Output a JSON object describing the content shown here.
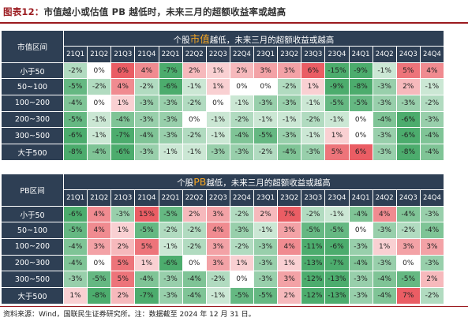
{
  "figure": {
    "number": "图表12：",
    "title": "市值越小或估值 PB 越低时，未来三月的超额收益率或越高"
  },
  "quarters": [
    "21Q1",
    "21Q2",
    "21Q3",
    "21Q4",
    "22Q1",
    "22Q2",
    "22Q3",
    "22Q4",
    "23Q1",
    "23Q2",
    "23Q3",
    "23Q4",
    "24Q1",
    "24Q2",
    "24Q3",
    "24Q4"
  ],
  "tables": [
    {
      "corner_label": "市值区间",
      "title_prefix": "个股",
      "title_highlight": "市值",
      "title_suffix": "越低，未来三月的超额收益或越高",
      "rows": [
        {
          "label": "小于50",
          "values": [
            "-2%",
            "0%",
            "6%",
            "4%",
            "-7%",
            "2%",
            "1%",
            "2%",
            "3%",
            "3%",
            "6%",
            "-15%",
            "-9%",
            "-1%",
            "5%",
            "4%"
          ]
        },
        {
          "label": "50~100",
          "values": [
            "-5%",
            "-2%",
            "4%",
            "-2%",
            "-6%",
            "-1%",
            "1%",
            "0%",
            "0%",
            "-2%",
            "1%",
            "-9%",
            "-8%",
            "-3%",
            "2%",
            "-1%"
          ]
        },
        {
          "label": "100~200",
          "values": [
            "-4%",
            "0%",
            "1%",
            "-3%",
            "-3%",
            "-2%",
            "0%",
            "-1%",
            "-3%",
            "-3%",
            "-1%",
            "-5%",
            "-5%",
            "-3%",
            "-3%",
            "-2%"
          ]
        },
        {
          "label": "200~300",
          "values": [
            "-5%",
            "-1%",
            "-4%",
            "-3%",
            "-3%",
            "0%",
            "-1%",
            "-2%",
            "-1%",
            "-1%",
            "-2%",
            "-1%",
            "0%",
            "-4%",
            "-6%",
            "-3%"
          ]
        },
        {
          "label": "300~500",
          "values": [
            "-6%",
            "-1%",
            "-7%",
            "-4%",
            "-3%",
            "-2%",
            "-1%",
            "-4%",
            "-5%",
            "-3%",
            "-1%",
            "1%",
            "0%",
            "-3%",
            "-6%",
            "-4%"
          ]
        },
        {
          "label": "大于500",
          "values": [
            "-8%",
            "-4%",
            "-6%",
            "-3%",
            "-1%",
            "-1%",
            "-3%",
            "-3%",
            "-2%",
            "-4%",
            "-3%",
            "5%",
            "6%",
            "-3%",
            "-8%",
            "-4%"
          ]
        }
      ]
    },
    {
      "corner_label": "PB区间",
      "title_prefix": "个股",
      "title_highlight": "PB",
      "title_suffix": "越低，未来三月的超额收益或越高",
      "rows": [
        {
          "label": "小于50",
          "values": [
            "-6%",
            "4%",
            "-3%",
            "15%",
            "-5%",
            "2%",
            "3%",
            "-2%",
            "2%",
            "7%",
            "-2%",
            "-1%",
            "-4%",
            "4%",
            "-4%",
            "-3%"
          ]
        },
        {
          "label": "50~100",
          "values": [
            "-5%",
            "4%",
            "1%",
            "-5%",
            "-2%",
            "-2%",
            "4%",
            "-3%",
            "-1%",
            "3%",
            "-5%",
            "-5%",
            "0%",
            "-3%",
            "-2%",
            "-4%"
          ]
        },
        {
          "label": "100~200",
          "values": [
            "-4%",
            "3%",
            "2%",
            "5%",
            "-1%",
            "-2%",
            "3%",
            "-2%",
            "-3%",
            "4%",
            "-11%",
            "-6%",
            "-3%",
            "1%",
            "3%",
            "3%"
          ]
        },
        {
          "label": "200~300",
          "values": [
            "-4%",
            "0%",
            "5%",
            "1%",
            "-6%",
            "0%",
            "3%",
            "1%",
            "-3%",
            "1%",
            "-13%",
            "-7%",
            "-4%",
            "-3%",
            "0%",
            "-3%"
          ]
        },
        {
          "label": "300~500",
          "values": [
            "-3%",
            "-5%",
            "5%",
            "-4%",
            "-3%",
            "-4%",
            "-2%",
            "0%",
            "-3%",
            "3%",
            "-12%",
            "-13%",
            "-3%",
            "-4%",
            "-5%",
            "2%"
          ]
        },
        {
          "label": "大于500",
          "values": [
            "1%",
            "-8%",
            "2%",
            "-7%",
            "-3%",
            "-4%",
            "-1%",
            "-5%",
            "-5%",
            "2%",
            "-12%",
            "-13%",
            "-3%",
            "-4%",
            "7%",
            "-2%"
          ]
        }
      ]
    }
  ],
  "source": "资料来源：Wind，国联民生证券研究所。注：数据截至 2024 年 12 月 31 日。",
  "colors": {
    "header_bg": "#2e3f54",
    "accent": "#9b1a1f",
    "highlight": "#f6a623",
    "positive_strong": "#ea5d64",
    "negative_strong": "#4cac6d"
  }
}
